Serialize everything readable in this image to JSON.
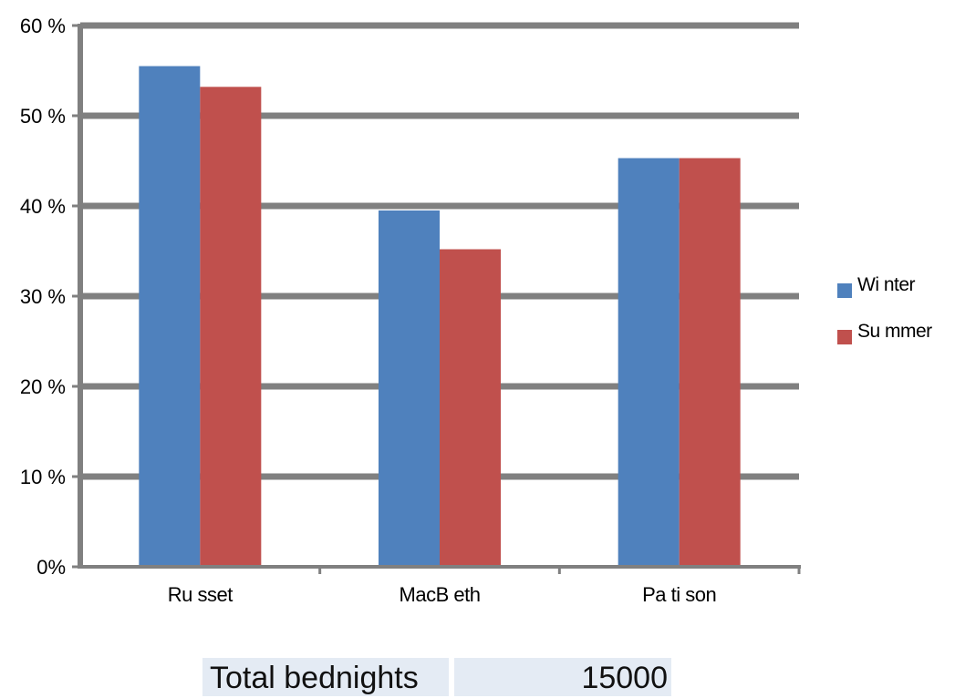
{
  "chart_data": {
    "type": "bar",
    "categories": [
      "Ru sset",
      "MacB eth",
      "Pa ti son"
    ],
    "series": [
      {
        "name": "Wi nter",
        "values": [
          55.5,
          39.5,
          45.3
        ],
        "color": "#4f81bd"
      },
      {
        "name": "Su mmer",
        "values": [
          53.2,
          35.2,
          45.3
        ],
        "color": "#c0504d"
      }
    ],
    "ylim": [
      0,
      60
    ],
    "yticks": [
      0,
      10,
      20,
      30,
      40,
      50,
      60
    ],
    "ytick_labels": [
      "0%",
      "10 %",
      "20 %",
      "30 %",
      "40 %",
      "50 %",
      "60 %"
    ],
    "grid": true,
    "legend_position": "right",
    "axis_color": "#808080"
  },
  "summary": {
    "label": "Total bednights",
    "value": "15000"
  }
}
